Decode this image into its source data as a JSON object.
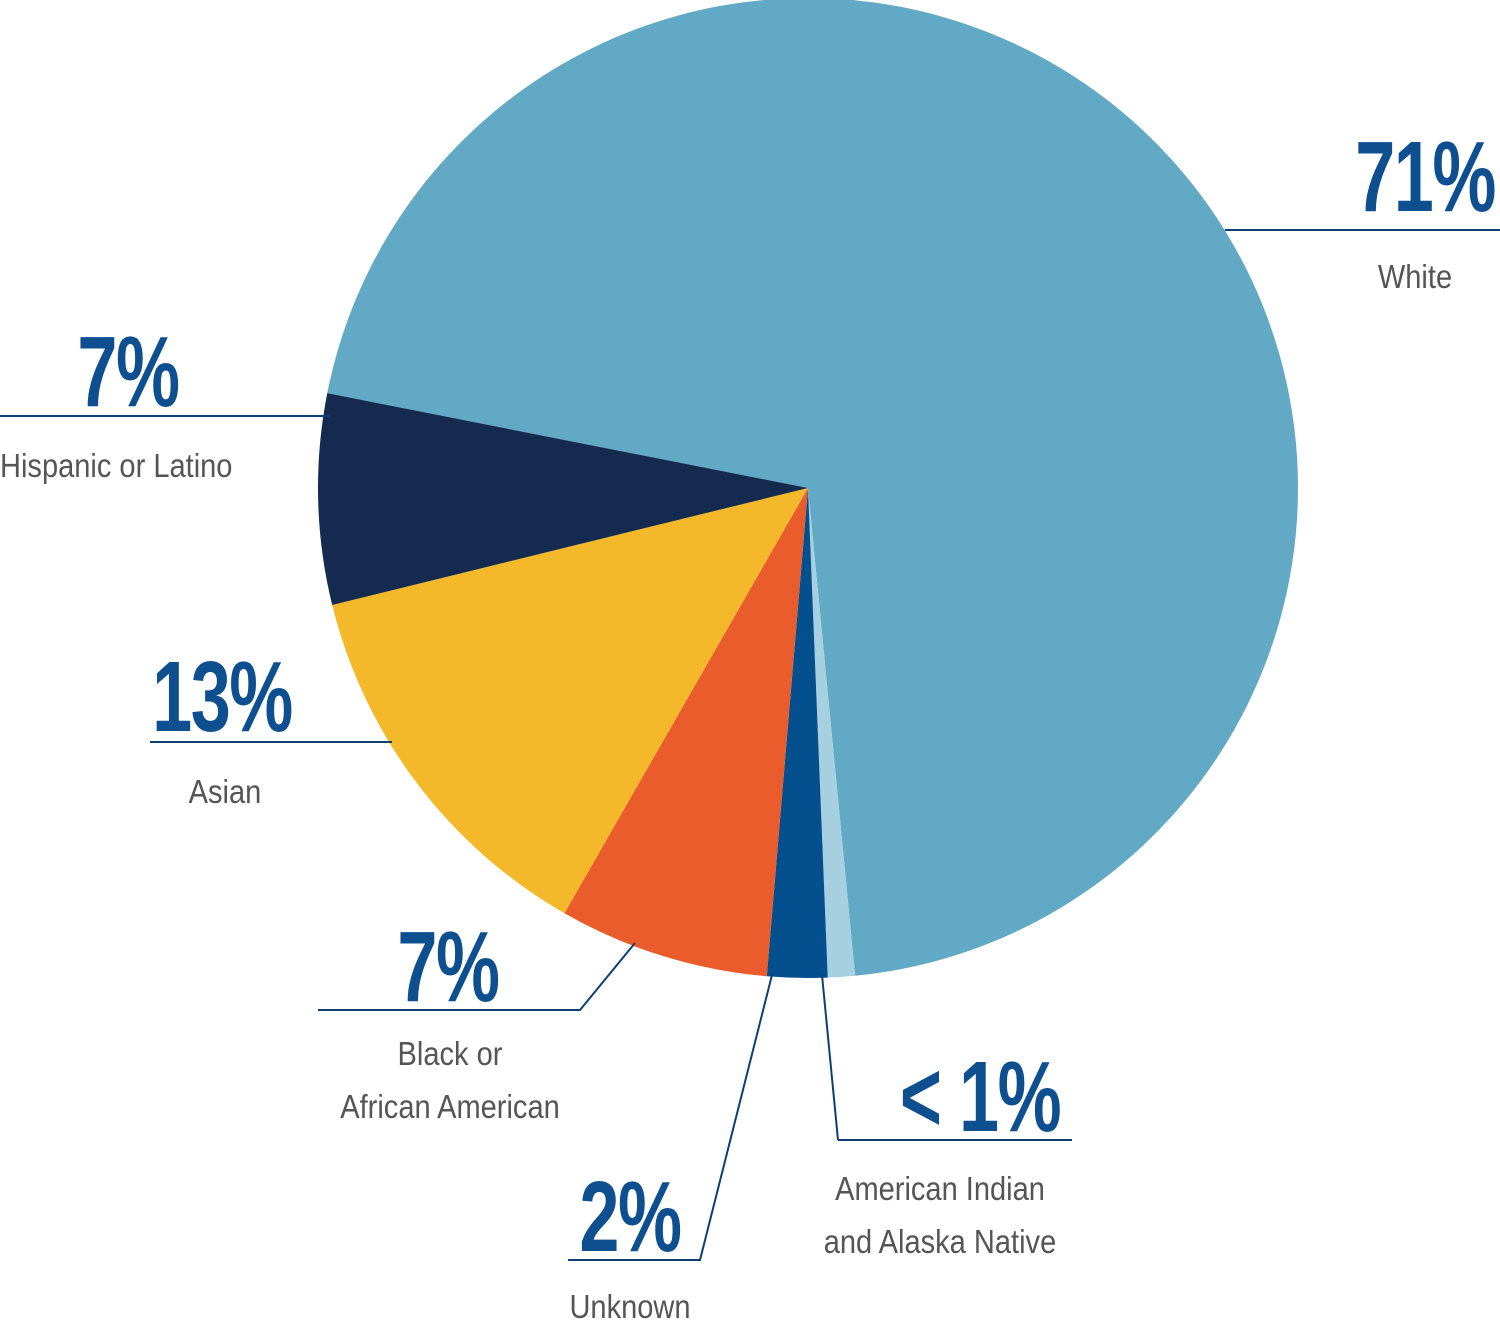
{
  "chart_data": {
    "type": "pie",
    "categories": [
      "White",
      "American Indian\nand Alaska Native",
      "Unknown",
      "Black or\nAfrican American",
      "Asian",
      "Hispanic or Latino"
    ],
    "values": [
      71,
      0.9,
      2,
      7,
      13,
      7
    ],
    "value_labels": [
      "71%",
      "< 1%",
      "2%",
      "7%",
      "13%",
      "7%"
    ],
    "colors": [
      "#62a9c6",
      "#a6cfe0",
      "#04508f",
      "#ea5c2b",
      "#f4b92a",
      "#142b4f"
    ]
  }
}
